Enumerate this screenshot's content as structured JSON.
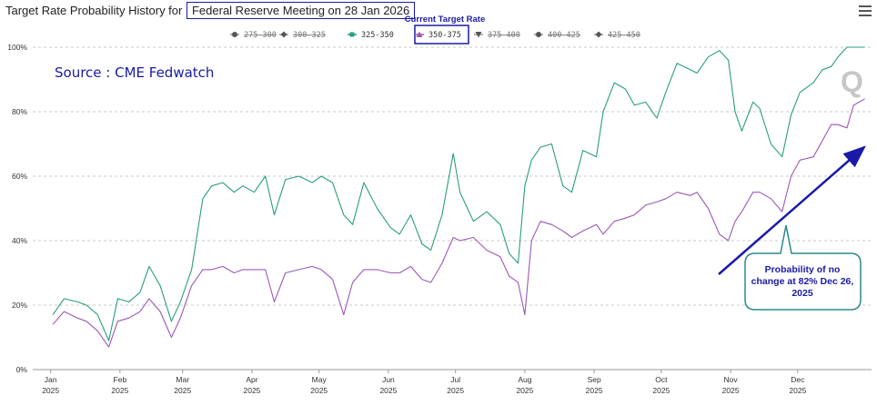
{
  "title_prefix": "Target Rate Probability History for",
  "title_highlight": "Federal Reserve Meeting on 28 Jan 2026",
  "legend_caption": "Current Target Rate",
  "source_text": "Source : CME Fedwatch",
  "callout_text": [
    "Probability of no",
    "change at 82% Dec 26,",
    "2025"
  ],
  "watermark": "Q",
  "colors": {
    "green": "#2a9d80",
    "purple": "#9b59b6",
    "navy": "#1a1aa8",
    "callout_border": "#2b8a8a"
  },
  "chart_data": {
    "type": "line",
    "ylim": [
      0,
      100
    ],
    "yticks": [
      "0%",
      "20%",
      "40%",
      "60%",
      "80%",
      "100%"
    ],
    "xticks": [
      {
        "month": "Jan",
        "year": "2025"
      },
      {
        "month": "Feb",
        "year": "2025"
      },
      {
        "month": "Mar",
        "year": "2025"
      },
      {
        "month": "Apr",
        "year": "2025"
      },
      {
        "month": "May",
        "year": "2025"
      },
      {
        "month": "Jun",
        "year": "2025"
      },
      {
        "month": "Jul",
        "year": "2025"
      },
      {
        "month": "Aug",
        "year": "2025"
      },
      {
        "month": "Sep",
        "year": "2025"
      },
      {
        "month": "Oct",
        "year": "2025"
      },
      {
        "month": "Nov",
        "year": "2025"
      },
      {
        "month": "Dec",
        "year": "2025"
      }
    ],
    "legend": [
      {
        "label": "275-300",
        "marker": "circle",
        "visible": false
      },
      {
        "label": "300-325",
        "marker": "diamond",
        "visible": false
      },
      {
        "label": "325-350",
        "marker": "square",
        "visible": true
      },
      {
        "label": "350-375",
        "marker": "triangle",
        "visible": true,
        "current": true
      },
      {
        "label": "375-400",
        "marker": "triangle-down",
        "visible": false
      },
      {
        "label": "400-425",
        "marker": "circle",
        "visible": false
      },
      {
        "label": "425-450",
        "marker": "diamond",
        "visible": false
      }
    ],
    "series": [
      {
        "name": "325-350",
        "color": "#2a9d80",
        "points": [
          [
            "2025-01-02",
            17
          ],
          [
            "2025-01-07",
            22
          ],
          [
            "2025-01-13",
            21
          ],
          [
            "2025-01-17",
            20
          ],
          [
            "2025-01-22",
            17
          ],
          [
            "2025-01-27",
            9
          ],
          [
            "2025-01-31",
            22
          ],
          [
            "2025-02-05",
            21
          ],
          [
            "2025-02-10",
            24
          ],
          [
            "2025-02-14",
            32
          ],
          [
            "2025-02-19",
            26
          ],
          [
            "2025-02-24",
            15
          ],
          [
            "2025-02-28",
            21
          ],
          [
            "2025-03-05",
            31
          ],
          [
            "2025-03-10",
            53
          ],
          [
            "2025-03-14",
            57
          ],
          [
            "2025-03-19",
            58
          ],
          [
            "2025-03-24",
            55
          ],
          [
            "2025-03-28",
            57
          ],
          [
            "2025-04-02",
            55
          ],
          [
            "2025-04-07",
            60
          ],
          [
            "2025-04-11",
            48
          ],
          [
            "2025-04-16",
            59
          ],
          [
            "2025-04-22",
            60
          ],
          [
            "2025-04-28",
            58
          ],
          [
            "2025-05-02",
            60
          ],
          [
            "2025-05-07",
            58
          ],
          [
            "2025-05-12",
            48
          ],
          [
            "2025-05-16",
            45
          ],
          [
            "2025-05-21",
            58
          ],
          [
            "2025-05-27",
            50
          ],
          [
            "2025-06-02",
            44
          ],
          [
            "2025-06-06",
            42
          ],
          [
            "2025-06-11",
            48
          ],
          [
            "2025-06-16",
            39
          ],
          [
            "2025-06-20",
            37
          ],
          [
            "2025-06-25",
            48
          ],
          [
            "2025-06-30",
            67
          ],
          [
            "2025-07-03",
            55
          ],
          [
            "2025-07-09",
            46
          ],
          [
            "2025-07-15",
            49
          ],
          [
            "2025-07-21",
            45
          ],
          [
            "2025-07-25",
            36
          ],
          [
            "2025-07-29",
            33
          ],
          [
            "2025-08-01",
            57
          ],
          [
            "2025-08-04",
            65
          ],
          [
            "2025-08-08",
            69
          ],
          [
            "2025-08-13",
            70
          ],
          [
            "2025-08-18",
            57
          ],
          [
            "2025-08-22",
            55
          ],
          [
            "2025-08-27",
            68
          ],
          [
            "2025-09-02",
            66
          ],
          [
            "2025-09-05",
            80
          ],
          [
            "2025-09-10",
            89
          ],
          [
            "2025-09-15",
            87
          ],
          [
            "2025-09-19",
            82
          ],
          [
            "2025-09-24",
            83
          ],
          [
            "2025-09-29",
            78
          ],
          [
            "2025-10-03",
            86
          ],
          [
            "2025-10-08",
            95
          ],
          [
            "2025-10-14",
            93
          ],
          [
            "2025-10-17",
            92
          ],
          [
            "2025-10-22",
            97
          ],
          [
            "2025-10-27",
            99
          ],
          [
            "2025-10-31",
            96
          ],
          [
            "2025-11-03",
            80
          ],
          [
            "2025-11-06",
            74
          ],
          [
            "2025-11-11",
            83
          ],
          [
            "2025-11-14",
            81
          ],
          [
            "2025-11-19",
            70
          ],
          [
            "2025-11-24",
            66
          ],
          [
            "2025-11-28",
            79
          ],
          [
            "2025-12-02",
            86
          ],
          [
            "2025-12-08",
            89
          ],
          [
            "2025-12-12",
            93
          ],
          [
            "2025-12-16",
            94
          ],
          [
            "2025-12-19",
            97
          ],
          [
            "2025-12-23",
            100
          ],
          [
            "2025-12-31",
            100
          ]
        ]
      },
      {
        "name": "350-375",
        "color": "#9b59b6",
        "points": [
          [
            "2025-01-02",
            14
          ],
          [
            "2025-01-07",
            18
          ],
          [
            "2025-01-13",
            16
          ],
          [
            "2025-01-17",
            15
          ],
          [
            "2025-01-22",
            12
          ],
          [
            "2025-01-27",
            7
          ],
          [
            "2025-01-31",
            15
          ],
          [
            "2025-02-05",
            16
          ],
          [
            "2025-02-10",
            18
          ],
          [
            "2025-02-14",
            22
          ],
          [
            "2025-02-19",
            18
          ],
          [
            "2025-02-24",
            10
          ],
          [
            "2025-02-28",
            16
          ],
          [
            "2025-03-05",
            26
          ],
          [
            "2025-03-10",
            31
          ],
          [
            "2025-03-14",
            31
          ],
          [
            "2025-03-19",
            32
          ],
          [
            "2025-03-24",
            30
          ],
          [
            "2025-03-28",
            31
          ],
          [
            "2025-04-02",
            31
          ],
          [
            "2025-04-07",
            31
          ],
          [
            "2025-04-11",
            21
          ],
          [
            "2025-04-16",
            30
          ],
          [
            "2025-04-22",
            31
          ],
          [
            "2025-04-28",
            32
          ],
          [
            "2025-05-02",
            31
          ],
          [
            "2025-05-07",
            28
          ],
          [
            "2025-05-12",
            17
          ],
          [
            "2025-05-16",
            27
          ],
          [
            "2025-05-21",
            31
          ],
          [
            "2025-05-27",
            31
          ],
          [
            "2025-06-02",
            30
          ],
          [
            "2025-06-06",
            30
          ],
          [
            "2025-06-11",
            32
          ],
          [
            "2025-06-16",
            28
          ],
          [
            "2025-06-20",
            27
          ],
          [
            "2025-06-25",
            33
          ],
          [
            "2025-06-30",
            41
          ],
          [
            "2025-07-03",
            40
          ],
          [
            "2025-07-09",
            41
          ],
          [
            "2025-07-15",
            37
          ],
          [
            "2025-07-21",
            35
          ],
          [
            "2025-07-25",
            29
          ],
          [
            "2025-07-29",
            27
          ],
          [
            "2025-08-01",
            17
          ],
          [
            "2025-08-04",
            40
          ],
          [
            "2025-08-08",
            46
          ],
          [
            "2025-08-13",
            45
          ],
          [
            "2025-08-18",
            43
          ],
          [
            "2025-08-22",
            41
          ],
          [
            "2025-08-27",
            43
          ],
          [
            "2025-09-02",
            45
          ],
          [
            "2025-09-05",
            42
          ],
          [
            "2025-09-10",
            46
          ],
          [
            "2025-09-15",
            47
          ],
          [
            "2025-09-19",
            48
          ],
          [
            "2025-09-24",
            51
          ],
          [
            "2025-09-29",
            52
          ],
          [
            "2025-10-03",
            53
          ],
          [
            "2025-10-08",
            55
          ],
          [
            "2025-10-14",
            54
          ],
          [
            "2025-10-17",
            55
          ],
          [
            "2025-10-22",
            50
          ],
          [
            "2025-10-27",
            42
          ],
          [
            "2025-10-31",
            40
          ],
          [
            "2025-11-03",
            46
          ],
          [
            "2025-11-06",
            49
          ],
          [
            "2025-11-11",
            55
          ],
          [
            "2025-11-14",
            55
          ],
          [
            "2025-11-19",
            53
          ],
          [
            "2025-11-24",
            49
          ],
          [
            "2025-11-28",
            60
          ],
          [
            "2025-12-02",
            65
          ],
          [
            "2025-12-08",
            66
          ],
          [
            "2025-12-12",
            71
          ],
          [
            "2025-12-16",
            76
          ],
          [
            "2025-12-19",
            76
          ],
          [
            "2025-12-23",
            75
          ],
          [
            "2025-12-26",
            82
          ],
          [
            "2025-12-31",
            84
          ]
        ]
      }
    ]
  }
}
